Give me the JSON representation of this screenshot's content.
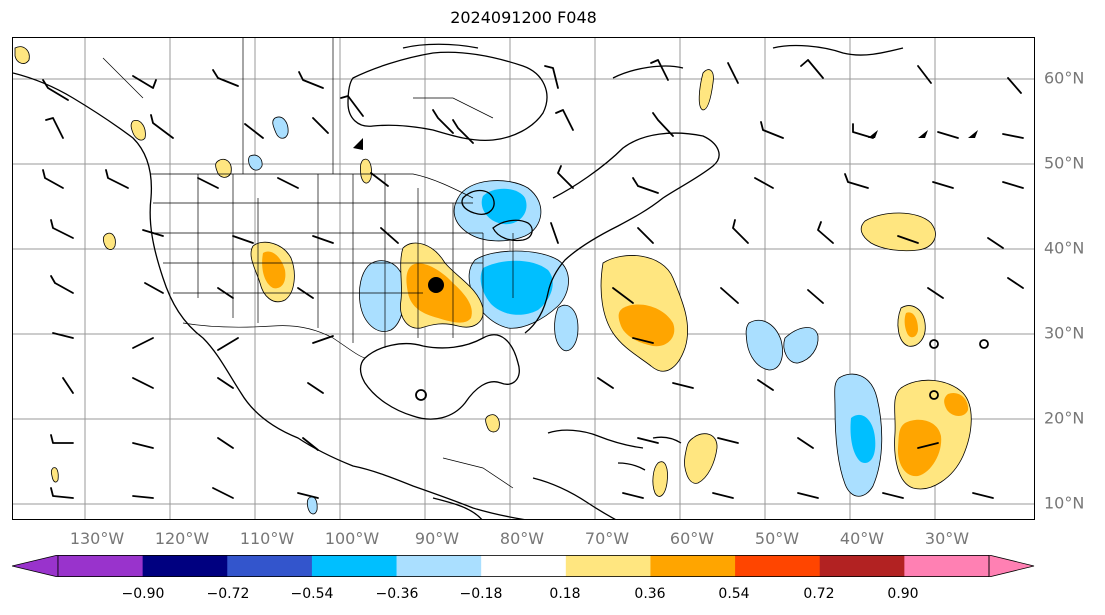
{
  "title": "2024091200 F048",
  "map": {
    "lat_labels": [
      "60°N",
      "50°N",
      "40°N",
      "30°N",
      "20°N",
      "10°N"
    ],
    "lon_labels": [
      "130°W",
      "120°W",
      "110°W",
      "100°W",
      "90°W",
      "80°W",
      "70°W",
      "60°W",
      "50°W",
      "40°W",
      "30°W"
    ]
  },
  "colorbar": {
    "tick_labels": [
      "−0.90",
      "−0.72",
      "−0.54",
      "−0.36",
      "−0.18",
      "0.18",
      "0.36",
      "0.54",
      "0.72",
      "0.90"
    ],
    "colors": {
      "under": "#9933cc",
      "bins": [
        "#9933cc",
        "#000080",
        "#3355cc",
        "#00bfff",
        "#aadfff",
        "#ffffff",
        "#ffe680",
        "#ffa500",
        "#ff4500",
        "#b22222"
      ],
      "over": "#ff80b3"
    }
  },
  "fills": {
    "light_blue": "#aadfff",
    "blue": "#00bfff",
    "light_yellow": "#ffe680",
    "orange": "#ffa500"
  }
}
